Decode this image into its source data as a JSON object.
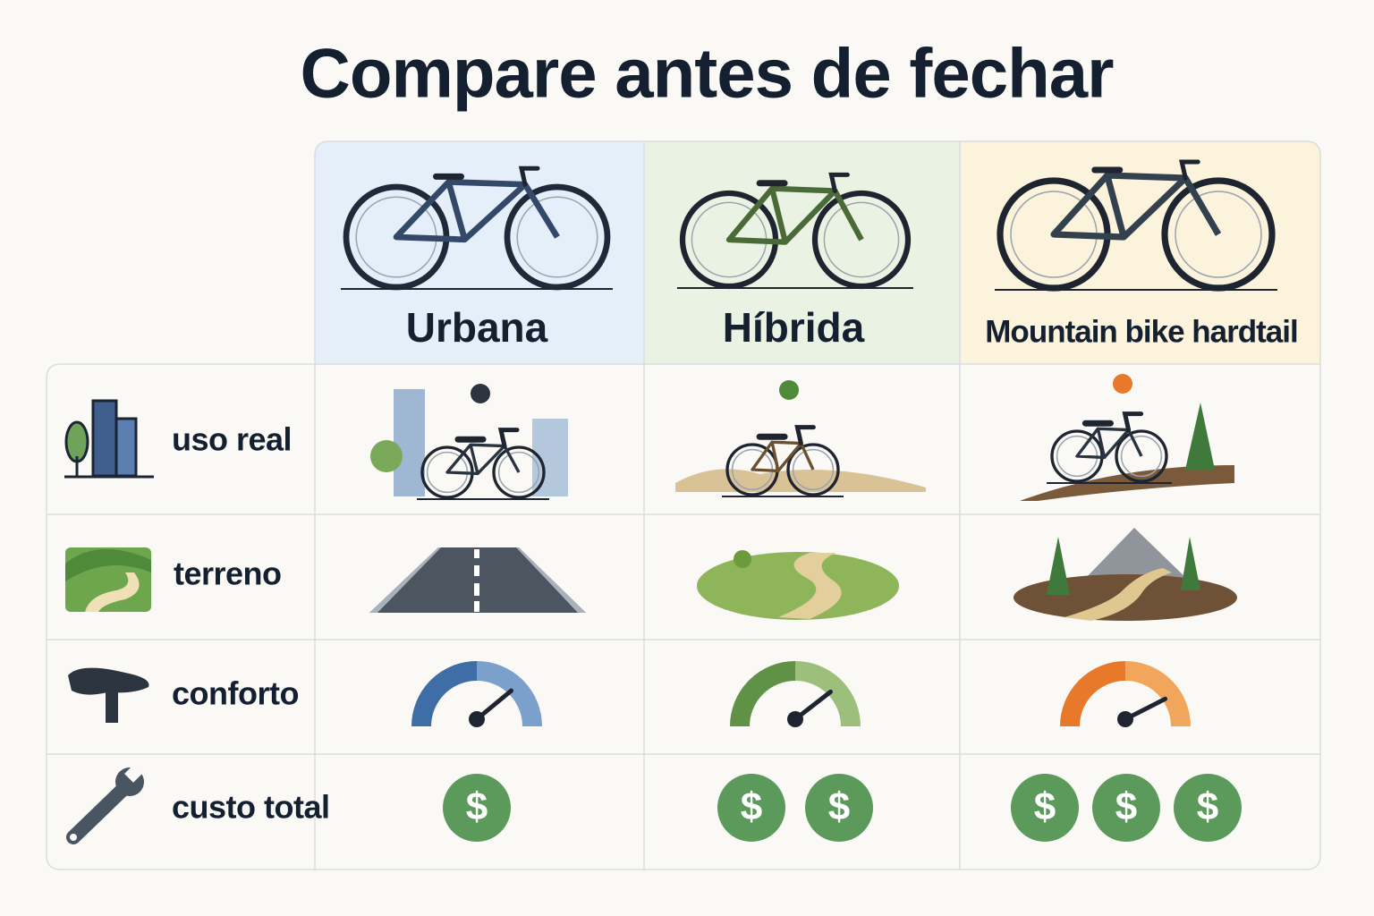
{
  "title": "Compare antes de fechar",
  "columns": [
    {
      "name": "Urbana"
    },
    {
      "name": "Híbrida"
    },
    {
      "name": "Mountain bike hardtail"
    }
  ],
  "rows": [
    {
      "label": "uso real"
    },
    {
      "label": "terreno"
    },
    {
      "label": "conforto"
    },
    {
      "label": "custo total"
    }
  ],
  "comfort": [
    0.78,
    0.79,
    0.85
  ],
  "cost": [
    1,
    2,
    3
  ],
  "currency_symbol": "$"
}
